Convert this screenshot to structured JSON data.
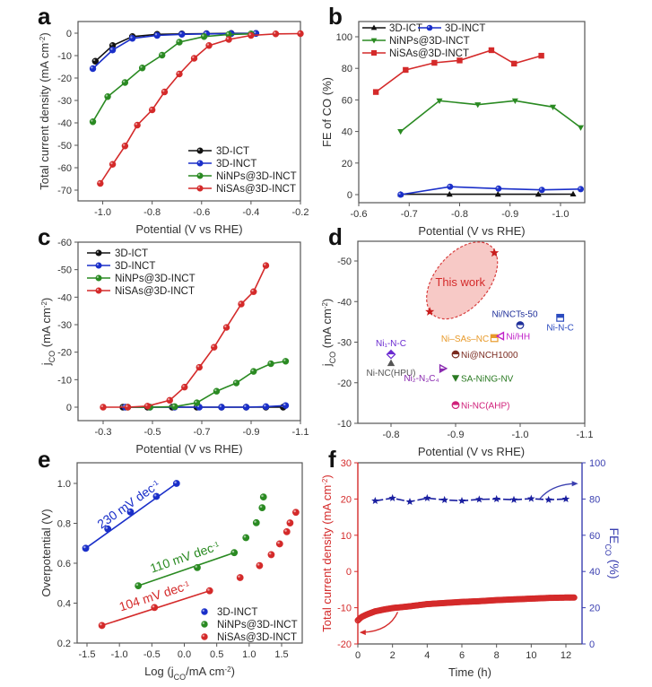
{
  "figure": {
    "panels": [
      "a",
      "b",
      "c",
      "d",
      "e",
      "f"
    ]
  },
  "colors": {
    "black": "#111111",
    "blue": "#1a2fc9",
    "green": "#2a8a22",
    "red": "#d42a2a",
    "axis_f_left": "#d42a2a",
    "axis_f_right": "#3a3fb0"
  },
  "chart_data": [
    {
      "panel": "a",
      "type": "line",
      "title": "",
      "xlabel": "Potential (V vs RHE)",
      "ylabel": "Total current density (mA cm⁻²)",
      "xlim": [
        -1.1,
        -0.2
      ],
      "ylim": [
        -75,
        5
      ],
      "xticks": [
        -1.0,
        -0.8,
        -0.6,
        -0.4,
        -0.2
      ],
      "xtick_labels": [
        "-1.0",
        "-0.8",
        "-0.6",
        "-0.4",
        "-0.2"
      ],
      "yticks": [
        0,
        -10,
        -20,
        -30,
        -40,
        -50,
        -60,
        -70
      ],
      "ytick_labels": [
        "0",
        "-10",
        "-20",
        "-30",
        "-40",
        "-50",
        "-60",
        "-70"
      ],
      "legend_position": "bottom-right",
      "series": [
        {
          "name": "3D-ICT",
          "color": "#111111",
          "marker": "circle",
          "x": [
            -1.03,
            -0.96,
            -0.88,
            -0.78,
            -0.68,
            -0.58,
            -0.48,
            -0.38
          ],
          "y": [
            -12.5,
            -5.5,
            -1.5,
            -0.5,
            -0.3,
            -0.2,
            -0.1,
            -0.1
          ]
        },
        {
          "name": "3D-INCT",
          "color": "#1a2fc9",
          "marker": "circle",
          "x": [
            -1.04,
            -0.96,
            -0.88,
            -0.78,
            -0.68,
            -0.58,
            -0.48,
            -0.38
          ],
          "y": [
            -15.8,
            -7.5,
            -2.3,
            -1.0,
            -0.5,
            -0.3,
            -0.2,
            -0.1
          ]
        },
        {
          "name": "NiNPs@3D-INCT",
          "color": "#2a8a22",
          "marker": "circle",
          "x": [
            -1.04,
            -0.98,
            -0.91,
            -0.84,
            -0.76,
            -0.69,
            -0.59,
            -0.49,
            -0.4
          ],
          "y": [
            -39.5,
            -28.3,
            -22.0,
            -15.5,
            -9.8,
            -4.0,
            -1.5,
            -0.6,
            -0.3
          ]
        },
        {
          "name": "NiSAs@3D-INCT",
          "color": "#d42a2a",
          "marker": "circle",
          "x": [
            -1.01,
            -0.96,
            -0.91,
            -0.86,
            -0.8,
            -0.75,
            -0.69,
            -0.63,
            -0.57,
            -0.49,
            -0.4,
            -0.3,
            -0.2
          ],
          "y": [
            -67.0,
            -58.5,
            -50.3,
            -41.0,
            -34.2,
            -26.2,
            -18.2,
            -11.2,
            -5.5,
            -2.8,
            -1.0,
            -0.3,
            -0.2
          ]
        }
      ]
    },
    {
      "panel": "b",
      "type": "line",
      "title": "",
      "xlabel": "Potential (V vs RHE)",
      "ylabel": "FE of CO (%)",
      "xlim": [
        -0.6,
        -1.045
      ],
      "ylim": [
        -5,
        110
      ],
      "xticks": [
        -0.6,
        -0.7,
        -0.8,
        -0.9,
        -1.0
      ],
      "xtick_labels": [
        "-0.6",
        "-0.7",
        "-0.8",
        "-0.9",
        "-1.0"
      ],
      "yticks": [
        0,
        20,
        40,
        60,
        80,
        100
      ],
      "ytick_labels": [
        "0",
        "20",
        "40",
        "60",
        "80",
        "100"
      ],
      "legend_position": "top-left",
      "series": [
        {
          "name": "3D-ICT",
          "color": "#111111",
          "marker": "triangle-up",
          "x": [
            -0.683,
            -0.78,
            -0.876,
            -0.956,
            -1.025
          ],
          "y": [
            0.2,
            0.2,
            0.2,
            0.2,
            0.3
          ]
        },
        {
          "name": "3D-INCT",
          "color": "#1a2fc9",
          "marker": "circle",
          "x": [
            -0.683,
            -0.781,
            -0.877,
            -0.963,
            -1.04
          ],
          "y": [
            0,
            5.0,
            3.8,
            3.0,
            3.5
          ]
        },
        {
          "name": "NiNPs@3D-INCT",
          "color": "#2a8a22",
          "marker": "triangle-down",
          "x": [
            -0.683,
            -0.76,
            -0.836,
            -0.91,
            -0.985,
            -1.04
          ],
          "y": [
            40,
            59.5,
            57,
            59.5,
            55.5,
            42.5
          ]
        },
        {
          "name": "NiSAs@3D-INCT",
          "color": "#d42a2a",
          "marker": "square",
          "x": [
            -0.634,
            -0.693,
            -0.75,
            -0.8,
            -0.863,
            -0.908,
            -0.962
          ],
          "y": [
            65,
            79,
            83.5,
            85,
            91.5,
            83,
            88
          ]
        }
      ]
    },
    {
      "panel": "c",
      "type": "line",
      "title": "",
      "xlabel": "Potential (V vs RHE)",
      "ylabel": "j_CO (mA cm⁻²)",
      "xlim": [
        -0.2,
        -1.1
      ],
      "ylim": [
        5,
        -60
      ],
      "xticks": [
        -0.3,
        -0.5,
        -0.7,
        -0.9,
        -1.1
      ],
      "xtick_labels": [
        "-0.3",
        "-0.5",
        "-0.7",
        "-0.9",
        "-1.1"
      ],
      "yticks": [
        0,
        -10,
        -20,
        -30,
        -40,
        -50,
        -60
      ],
      "ytick_labels": [
        "0",
        "-10",
        "-20",
        "-30",
        "-40",
        "-50",
        "-60"
      ],
      "legend_position": "top-left",
      "series": [
        {
          "name": "3D-ICT",
          "color": "#111111",
          "marker": "circle",
          "x": [
            -0.38,
            -0.48,
            -0.58,
            -0.68,
            -0.78,
            -0.88,
            -0.96,
            -1.03
          ],
          "y": [
            0,
            0,
            0,
            0,
            0,
            0,
            0,
            0
          ]
        },
        {
          "name": "3D-INCT",
          "color": "#1a2fc9",
          "marker": "circle",
          "x": [
            -0.39,
            -0.49,
            -0.59,
            -0.69,
            -0.78,
            -0.88,
            -0.96,
            -1.04
          ],
          "y": [
            0,
            0,
            0,
            0,
            0,
            0,
            -0.2,
            -0.6
          ]
        },
        {
          "name": "NiNPs@3D-INCT",
          "color": "#2a8a22",
          "marker": "circle",
          "x": [
            -0.4,
            -0.49,
            -0.59,
            -0.68,
            -0.76,
            -0.84,
            -0.91,
            -0.98,
            -1.04
          ],
          "y": [
            0,
            0,
            -0.2,
            -1.6,
            -5.8,
            -8.8,
            -13.0,
            -15.8,
            -16.7
          ]
        },
        {
          "name": "NiSAs@3D-INCT",
          "color": "#d42a2a",
          "marker": "circle",
          "x": [
            -0.3,
            -0.4,
            -0.48,
            -0.57,
            -0.63,
            -0.69,
            -0.75,
            -0.8,
            -0.86,
            -0.91,
            -0.96
          ],
          "y": [
            0,
            0,
            -0.4,
            -2.5,
            -7.3,
            -14.5,
            -21.8,
            -29.0,
            -37.5,
            -42.0,
            -51.5
          ]
        }
      ]
    },
    {
      "panel": "d",
      "type": "scatter",
      "title": "",
      "xlabel": "Potential (V vs RHE)",
      "ylabel": "j_CO (mA cm⁻²)",
      "xlim": [
        -0.75,
        -1.1
      ],
      "ylim": [
        -10,
        -55
      ],
      "xticks": [
        -0.8,
        -0.9,
        -1.0,
        -1.1
      ],
      "xtick_labels": [
        "-0.8",
        "-0.9",
        "-1.0",
        "-1.1"
      ],
      "yticks": [
        -10,
        -20,
        -30,
        -40,
        -50
      ],
      "ytick_labels": [
        "-10",
        "-20",
        "-30",
        "-40",
        "-50"
      ],
      "highlight": {
        "label": "This work",
        "color": "#d42a2a",
        "fill": "#f7c4c0"
      },
      "points": [
        {
          "name": "This work",
          "x": -0.86,
          "y": -37.5,
          "color": "#c81e1e",
          "marker": "star",
          "show_label": false
        },
        {
          "name": "This work",
          "x": -0.96,
          "y": -52.0,
          "color": "#c81e1e",
          "marker": "star",
          "show_label": false
        },
        {
          "name": "Ni/NCTs-50",
          "x": -1.0,
          "y": -34.2,
          "color": "#1f2f9a",
          "marker": "half-circle",
          "label_pos": "above"
        },
        {
          "name": "Ni-N-C",
          "x": -1.062,
          "y": -36.0,
          "color": "#2b4bbf",
          "marker": "half-square",
          "label_pos": "below"
        },
        {
          "name": "Ni–SAs–NC",
          "x": -0.96,
          "y": -31.0,
          "color": "#e89a2a",
          "marker": "half-square",
          "label_pos": "left"
        },
        {
          "name": "Ni/HH",
          "x": -0.97,
          "y": -31.5,
          "color": "#c020c8",
          "marker": "triangle-left",
          "label_pos": "right"
        },
        {
          "name": "Ni₁-N-C",
          "x": -0.8,
          "y": -27.0,
          "color": "#6a2ad0",
          "marker": "half-diamond",
          "label_pos": "above"
        },
        {
          "name": "Ni-NC(HPU)",
          "x": -0.8,
          "y": -24.8,
          "color": "#555555",
          "marker": "triangle-up",
          "label_pos": "below"
        },
        {
          "name": "Ni@NCH1000",
          "x": -0.9,
          "y": -27.0,
          "color": "#7a2a1f",
          "marker": "half-circle",
          "label_pos": "right"
        },
        {
          "name": "Ni₂-N₃C₄",
          "x": -0.88,
          "y": -23.5,
          "color": "#8a2ab0",
          "marker": "triangle-right",
          "label_pos": "below-left"
        },
        {
          "name": "SA-NiNG-NV",
          "x": -0.9,
          "y": -21.2,
          "color": "#2a7a22",
          "marker": "triangle-down",
          "label_pos": "right"
        },
        {
          "name": "Ni-NC(AHP)",
          "x": -0.9,
          "y": -14.5,
          "color": "#d0207a",
          "marker": "half-circle",
          "label_pos": "right"
        }
      ]
    },
    {
      "panel": "e",
      "type": "scatter",
      "title": "",
      "xlabel": "Log (j_CO/mA cm⁻²)",
      "ylabel": "Overpotential (V)",
      "xlim": [
        -1.65,
        1.82
      ],
      "ylim": [
        0.2,
        1.08
      ],
      "xticks": [
        -1.5,
        -1.0,
        -0.5,
        0.0,
        0.5,
        1.0,
        1.5
      ],
      "xtick_labels": [
        "-1.5",
        "-1.0",
        "-0.5",
        "0.0",
        "0.5",
        "1.0",
        "1.5"
      ],
      "yticks": [
        0.2,
        0.4,
        0.6,
        0.8,
        1.0
      ],
      "ytick_labels": [
        "0.2",
        "0.4",
        "0.6",
        "0.8",
        "1.0"
      ],
      "legend_position": "bottom-right",
      "series": [
        {
          "name": "3D-INCT",
          "color": "#1a2fc9",
          "x": [
            -1.52,
            -1.18,
            -0.83,
            -0.43,
            -0.12
          ],
          "y": [
            0.675,
            0.772,
            0.857,
            0.935,
            1.0
          ],
          "fit": {
            "x": [
              -1.52,
              -0.12
            ],
            "y": [
              0.675,
              1.0
            ],
            "label": "230 mV dec⁻¹"
          }
        },
        {
          "name": "NiNPs@3D-INCT",
          "color": "#2a8a22",
          "x": [
            -0.71,
            0.2,
            0.77,
            0.95,
            1.11,
            1.2,
            1.22
          ],
          "y": [
            0.487,
            0.578,
            0.653,
            0.728,
            0.803,
            0.878,
            0.932
          ],
          "fit": {
            "x": [
              -0.71,
              0.77
            ],
            "y": [
              0.487,
              0.653
            ],
            "label": "110 mV dec⁻¹"
          }
        },
        {
          "name": "NiSAs@3D-INCT",
          "color": "#d42a2a",
          "x": [
            -1.27,
            -0.46,
            0.39,
            0.86,
            1.16,
            1.34,
            1.47,
            1.58,
            1.63,
            1.72
          ],
          "y": [
            0.288,
            0.378,
            0.462,
            0.528,
            0.588,
            0.643,
            0.697,
            0.758,
            0.802,
            0.855
          ],
          "fit": {
            "x": [
              -1.27,
              0.39
            ],
            "y": [
              0.288,
              0.462
            ],
            "label": "104 mV dec⁻¹"
          }
        }
      ]
    },
    {
      "panel": "f",
      "type": "line",
      "title": "",
      "xlabel": "Time (h)",
      "ylabel_left": "Total current density (mA cm⁻²)",
      "ylabel_right": "FE_CO (%)",
      "xlim": [
        0,
        13
      ],
      "ylim_left": [
        -20,
        30
      ],
      "ylim_right": [
        0,
        100
      ],
      "xticks": [
        0,
        2,
        4,
        6,
        8,
        10,
        12
      ],
      "xtick_labels": [
        "0",
        "2",
        "4",
        "6",
        "8",
        "10",
        "12"
      ],
      "yticks_left": [
        -20,
        -10,
        0,
        10,
        20,
        30
      ],
      "ytick_labels_left": [
        "-20",
        "-10",
        "0",
        "10",
        "20",
        "30"
      ],
      "yticks_right": [
        0,
        20,
        40,
        60,
        80,
        100
      ],
      "ytick_labels_right": [
        "0",
        "20",
        "40",
        "60",
        "80",
        "100"
      ],
      "series": [
        {
          "name": "Total current density",
          "axis": "left",
          "color": "#d42a2a",
          "marker": "circle",
          "x": [
            0,
            0.2,
            0.5,
            1.0,
            1.5,
            2,
            3,
            4,
            5,
            6,
            7,
            8,
            9,
            10,
            11,
            12,
            12.5
          ],
          "y": [
            -13.5,
            -12.6,
            -11.9,
            -11.0,
            -10.5,
            -10.1,
            -9.6,
            -9.0,
            -8.7,
            -8.4,
            -8.2,
            -7.9,
            -7.7,
            -7.5,
            -7.3,
            -7.2,
            -7.2
          ]
        },
        {
          "name": "FE_CO",
          "axis": "right",
          "color": "#1a1fa0",
          "marker": "star",
          "x": [
            1,
            2,
            3,
            4,
            5,
            6,
            7,
            8,
            9,
            10,
            11,
            12
          ],
          "y": [
            79,
            80.5,
            78.5,
            80.5,
            79.5,
            79,
            79.8,
            80,
            79.6,
            80.2,
            79.6,
            80
          ]
        }
      ]
    }
  ]
}
